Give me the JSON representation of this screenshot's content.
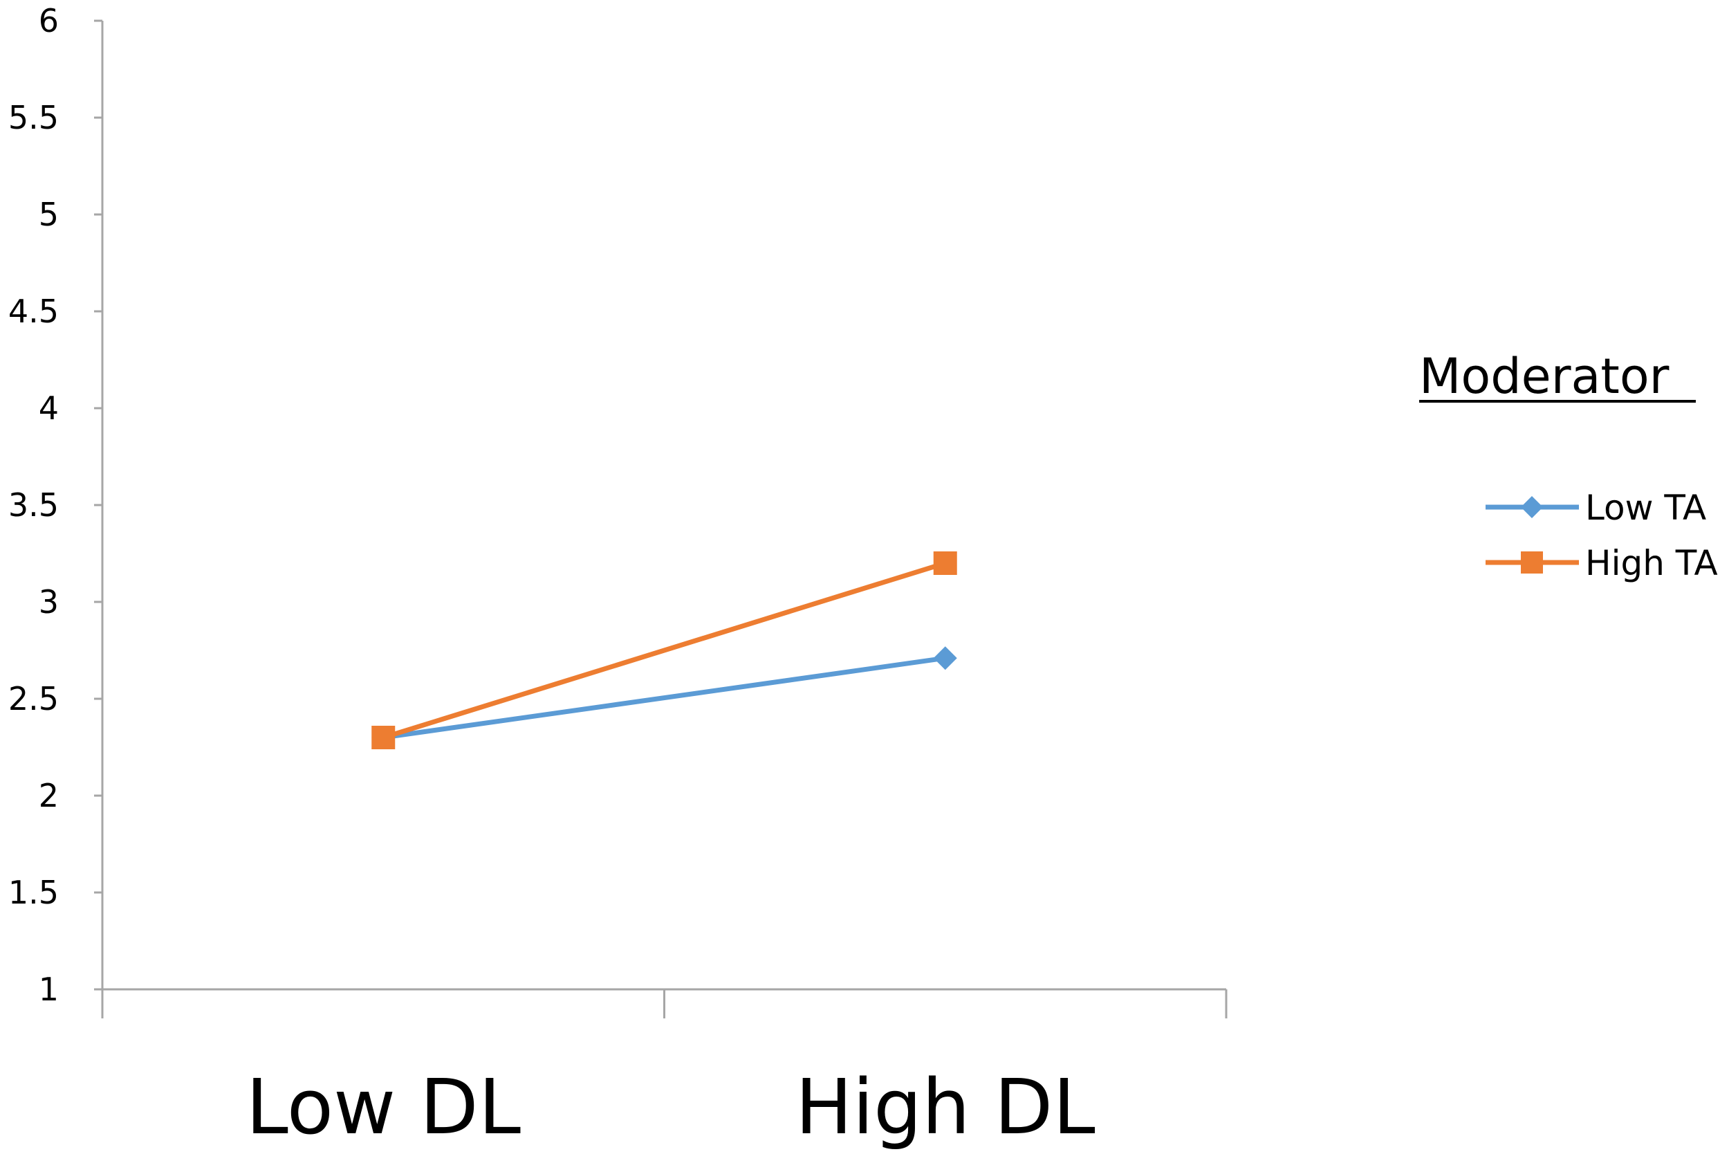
{
  "chart_data": {
    "type": "line",
    "categories": [
      "Low DL",
      "High DL"
    ],
    "series": [
      {
        "name": "Low TA",
        "values": [
          2.3,
          2.71
        ],
        "color": "#5B9BD5",
        "marker": "diamond"
      },
      {
        "name": "High TA",
        "values": [
          2.3,
          3.2
        ],
        "color": "#ED7D31",
        "marker": "square"
      }
    ],
    "ylim": [
      1,
      6
    ],
    "yticks": [
      1,
      1.5,
      2,
      2.5,
      3,
      3.5,
      4,
      4.5,
      5,
      5.5,
      6
    ],
    "ytick_labels": [
      "1",
      "1.5",
      "2",
      "2.5",
      "3",
      "3.5",
      "4",
      "4.5",
      "5",
      "5.5",
      "6"
    ],
    "grid": false,
    "legend": {
      "title": "Moderator",
      "placement": "right"
    },
    "title": "",
    "xlabel": "",
    "ylabel": ""
  }
}
